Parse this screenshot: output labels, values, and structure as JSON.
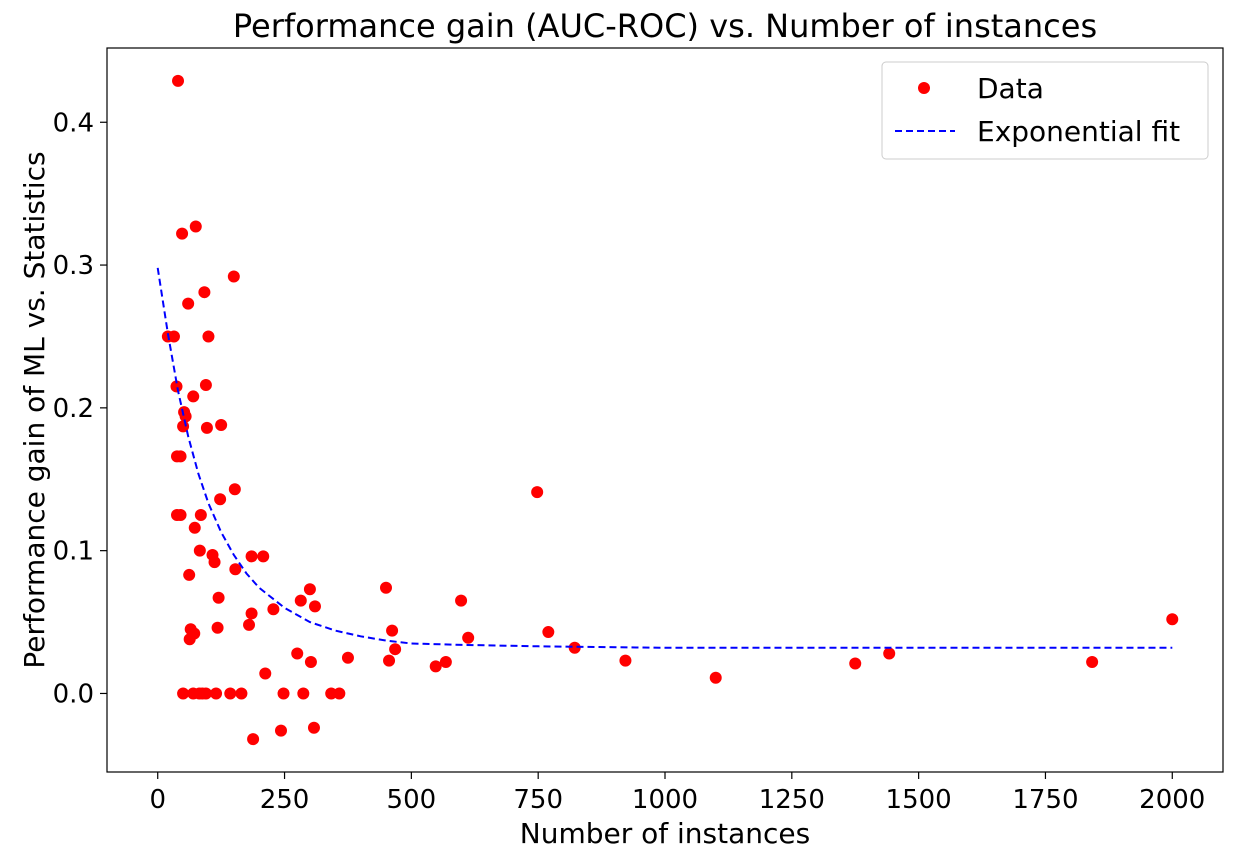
{
  "chart_data": {
    "type": "scatter",
    "title": "Performance gain (AUC-ROC) vs. Number of instances",
    "xlabel": "Number of instances",
    "ylabel": "Performance gain of ML vs. Statistics",
    "xlim": [
      -100,
      2100
    ],
    "ylim": [
      -0.055,
      0.452
    ],
    "xticks": [
      0,
      250,
      500,
      750,
      1000,
      1250,
      1500,
      1750,
      2000
    ],
    "xtick_labels": [
      "0",
      "250",
      "500",
      "750",
      "1000",
      "1250",
      "1500",
      "1750",
      "2000"
    ],
    "yticks": [
      0.0,
      0.1,
      0.2,
      0.3,
      0.4
    ],
    "ytick_labels": [
      "0.0",
      "0.1",
      "0.2",
      "0.3",
      "0.4"
    ],
    "grid": false,
    "legend_position": "top-right",
    "series": [
      {
        "name": "Data",
        "kind": "points",
        "color": "#ff0000",
        "points": [
          [
            40,
            0.429
          ],
          [
            75,
            0.327
          ],
          [
            48,
            0.322
          ],
          [
            150,
            0.292
          ],
          [
            60,
            0.273
          ],
          [
            92,
            0.281
          ],
          [
            20,
            0.25
          ],
          [
            32,
            0.25
          ],
          [
            100,
            0.25
          ],
          [
            37,
            0.215
          ],
          [
            95,
            0.216
          ],
          [
            70,
            0.208
          ],
          [
            52,
            0.197
          ],
          [
            55,
            0.194
          ],
          [
            50,
            0.187
          ],
          [
            97,
            0.186
          ],
          [
            125,
            0.188
          ],
          [
            38,
            0.166
          ],
          [
            45,
            0.166
          ],
          [
            152,
            0.143
          ],
          [
            123,
            0.136
          ],
          [
            38,
            0.125
          ],
          [
            45,
            0.125
          ],
          [
            85,
            0.125
          ],
          [
            73,
            0.116
          ],
          [
            83,
            0.1
          ],
          [
            108,
            0.097
          ],
          [
            112,
            0.092
          ],
          [
            185,
            0.096
          ],
          [
            208,
            0.096
          ],
          [
            153,
            0.087
          ],
          [
            62,
            0.083
          ],
          [
            120,
            0.067
          ],
          [
            118,
            0.046
          ],
          [
            65,
            0.045
          ],
          [
            72,
            0.042
          ],
          [
            63,
            0.038
          ],
          [
            228,
            0.059
          ],
          [
            185,
            0.056
          ],
          [
            180,
            0.048
          ],
          [
            282,
            0.065
          ],
          [
            300,
            0.073
          ],
          [
            310,
            0.061
          ],
          [
            275,
            0.028
          ],
          [
            302,
            0.022
          ],
          [
            375,
            0.025
          ],
          [
            212,
            0.014
          ],
          [
            50,
            0
          ],
          [
            70,
            0
          ],
          [
            82,
            0
          ],
          [
            88,
            0
          ],
          [
            95,
            0
          ],
          [
            115,
            0
          ],
          [
            143,
            0
          ],
          [
            165,
            0
          ],
          [
            248,
            0
          ],
          [
            287,
            0
          ],
          [
            342,
            0
          ],
          [
            358,
            0
          ],
          [
            188,
            -0.032
          ],
          [
            243,
            -0.026
          ],
          [
            308,
            -0.024
          ],
          [
            450,
            0.074
          ],
          [
            462,
            0.044
          ],
          [
            468,
            0.031
          ],
          [
            456,
            0.023
          ],
          [
            548,
            0.019
          ],
          [
            568,
            0.022
          ],
          [
            598,
            0.065
          ],
          [
            612,
            0.039
          ],
          [
            748,
            0.141
          ],
          [
            770,
            0.043
          ],
          [
            822,
            0.032
          ],
          [
            922,
            0.023
          ],
          [
            1100,
            0.011
          ],
          [
            1375,
            0.021
          ],
          [
            1442,
            0.028
          ],
          [
            1842,
            0.022
          ],
          [
            2000,
            0.052
          ]
        ]
      },
      {
        "name": "Exponential fit",
        "kind": "dashed-line",
        "color": "#0000ff",
        "x": [
          0,
          20,
          40,
          60,
          80,
          100,
          125,
          150,
          175,
          200,
          250,
          300,
          350,
          400,
          450,
          500,
          600,
          750,
          1000,
          1250,
          1500,
          1750,
          2000
        ],
        "y": [
          0.298,
          0.252,
          0.212,
          0.18,
          0.154,
          0.133,
          0.113,
          0.097,
          0.084,
          0.074,
          0.06,
          0.05,
          0.044,
          0.04,
          0.037,
          0.035,
          0.034,
          0.033,
          0.032,
          0.032,
          0.032,
          0.032,
          0.032
        ]
      }
    ]
  }
}
